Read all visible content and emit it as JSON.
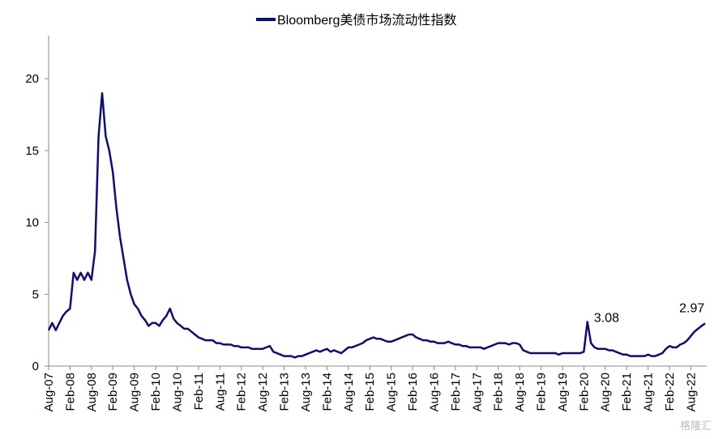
{
  "chart_data": {
    "type": "line",
    "categories": [
      "Aug-07",
      null,
      null,
      null,
      null,
      null,
      "Feb-08",
      null,
      null,
      null,
      null,
      null,
      "Aug-08",
      null,
      null,
      null,
      null,
      null,
      "Feb-09",
      null,
      null,
      null,
      null,
      null,
      "Aug-09",
      null,
      null,
      null,
      null,
      null,
      "Feb-10",
      null,
      null,
      null,
      null,
      null,
      "Aug-10",
      null,
      null,
      null,
      null,
      null,
      "Feb-11",
      null,
      null,
      null,
      null,
      null,
      "Aug-11",
      null,
      null,
      null,
      null,
      null,
      "Feb-12",
      null,
      null,
      null,
      null,
      null,
      "Aug-12",
      null,
      null,
      null,
      null,
      null,
      "Feb-13",
      null,
      null,
      null,
      null,
      null,
      "Aug-13",
      null,
      null,
      null,
      null,
      null,
      "Feb-14",
      null,
      null,
      null,
      null,
      null,
      "Aug-14",
      null,
      null,
      null,
      null,
      null,
      "Feb-15",
      null,
      null,
      null,
      null,
      null,
      "Aug-15",
      null,
      null,
      null,
      null,
      null,
      "Feb-16",
      null,
      null,
      null,
      null,
      null,
      "Aug-16",
      null,
      null,
      null,
      null,
      null,
      "Feb-17",
      null,
      null,
      null,
      null,
      null,
      "Aug-17",
      null,
      null,
      null,
      null,
      null,
      "Feb-18",
      null,
      null,
      null,
      null,
      null,
      "Aug-18",
      null,
      null,
      null,
      null,
      null,
      "Feb-19",
      null,
      null,
      null,
      null,
      null,
      "Aug-19",
      null,
      null,
      null,
      null,
      null,
      "Feb-20",
      null,
      null,
      null,
      null,
      null,
      "Aug-20",
      null,
      null,
      null,
      null,
      null,
      "Feb-21",
      null,
      null,
      null,
      null,
      null,
      "Aug-21",
      null,
      null,
      null,
      null,
      null,
      "Feb-22",
      null,
      null,
      null,
      null,
      null,
      "Aug-22",
      null,
      null,
      null,
      null
    ],
    "series": [
      {
        "name": "Bloomberg美债市场流动性指数",
        "color": "#0c0c7e",
        "values": [
          2.5,
          3.0,
          2.5,
          3.0,
          3.5,
          3.8,
          4.0,
          6.5,
          6.0,
          6.5,
          6.0,
          6.5,
          6.0,
          8.0,
          16.0,
          19.0,
          16.0,
          15.0,
          13.5,
          11.0,
          9.0,
          7.5,
          6.0,
          5.0,
          4.3,
          4.0,
          3.5,
          3.2,
          2.8,
          3.0,
          3.0,
          2.8,
          3.2,
          3.5,
          4.0,
          3.3,
          3.0,
          2.8,
          2.6,
          2.6,
          2.4,
          2.2,
          2.0,
          1.9,
          1.8,
          1.8,
          1.8,
          1.6,
          1.6,
          1.5,
          1.5,
          1.5,
          1.4,
          1.4,
          1.3,
          1.3,
          1.3,
          1.2,
          1.2,
          1.2,
          1.2,
          1.3,
          1.4,
          1.0,
          0.9,
          0.8,
          0.7,
          0.7,
          0.7,
          0.6,
          0.7,
          0.7,
          0.8,
          0.9,
          1.0,
          1.1,
          1.0,
          1.1,
          1.2,
          1.0,
          1.1,
          1.0,
          0.9,
          1.1,
          1.3,
          1.3,
          1.4,
          1.5,
          1.6,
          1.8,
          1.9,
          2.0,
          1.9,
          1.9,
          1.8,
          1.7,
          1.7,
          1.8,
          1.9,
          2.0,
          2.1,
          2.2,
          2.2,
          2.0,
          1.9,
          1.8,
          1.8,
          1.7,
          1.7,
          1.6,
          1.6,
          1.6,
          1.7,
          1.6,
          1.5,
          1.5,
          1.4,
          1.4,
          1.3,
          1.3,
          1.3,
          1.3,
          1.2,
          1.3,
          1.4,
          1.5,
          1.6,
          1.6,
          1.6,
          1.5,
          1.6,
          1.6,
          1.5,
          1.1,
          1.0,
          0.9,
          0.9,
          0.9,
          0.9,
          0.9,
          0.9,
          0.9,
          0.9,
          0.8,
          0.9,
          0.9,
          0.9,
          0.9,
          0.9,
          0.9,
          1.0,
          3.08,
          1.6,
          1.3,
          1.2,
          1.2,
          1.2,
          1.1,
          1.1,
          1.0,
          0.9,
          0.8,
          0.8,
          0.7,
          0.7,
          0.7,
          0.7,
          0.7,
          0.8,
          0.7,
          0.7,
          0.8,
          0.9,
          1.2,
          1.4,
          1.3,
          1.3,
          1.5,
          1.6,
          1.8,
          2.1,
          2.4,
          2.6,
          2.8,
          2.97
        ],
        "value_labels": [
          null,
          null,
          null,
          null,
          null,
          null,
          null,
          null,
          null,
          null,
          null,
          null,
          null,
          null,
          null,
          null,
          null,
          null,
          null,
          null,
          null,
          null,
          null,
          null,
          null,
          null,
          null,
          null,
          null,
          null,
          null,
          null,
          null,
          null,
          null,
          null,
          null,
          null,
          null,
          null,
          null,
          null,
          null,
          null,
          null,
          null,
          null,
          null,
          null,
          null,
          null,
          null,
          null,
          null,
          null,
          null,
          null,
          null,
          null,
          null,
          null,
          null,
          null,
          null,
          null,
          null,
          null,
          null,
          null,
          null,
          null,
          null,
          null,
          null,
          null,
          null,
          null,
          null,
          null,
          null,
          null,
          null,
          null,
          null,
          null,
          null,
          null,
          null,
          null,
          null,
          null,
          null,
          null,
          null,
          null,
          null,
          null,
          null,
          null,
          null,
          null,
          null,
          null,
          null,
          null,
          null,
          null,
          null,
          null,
          null,
          null,
          null,
          null,
          null,
          null,
          null,
          null,
          null,
          null,
          null,
          null,
          null,
          null,
          null,
          null,
          null,
          null,
          null,
          null,
          null,
          null,
          null,
          null,
          null,
          null,
          null,
          null,
          null,
          null,
          null,
          null,
          null,
          null,
          null,
          null,
          null,
          null,
          null,
          null,
          null,
          null,
          "3.08",
          null,
          null,
          null,
          null,
          null,
          null,
          null,
          null,
          null,
          null,
          null,
          null,
          null,
          null,
          null,
          null,
          null,
          null,
          null,
          null,
          null,
          null,
          null,
          null,
          null,
          null,
          null,
          null,
          null,
          null,
          null,
          null,
          "2.97"
        ]
      }
    ],
    "ylim": [
      0,
      23
    ],
    "yticks": [
      0,
      5,
      10,
      15,
      20
    ],
    "legend": "top",
    "watermark": "格隆汇"
  }
}
